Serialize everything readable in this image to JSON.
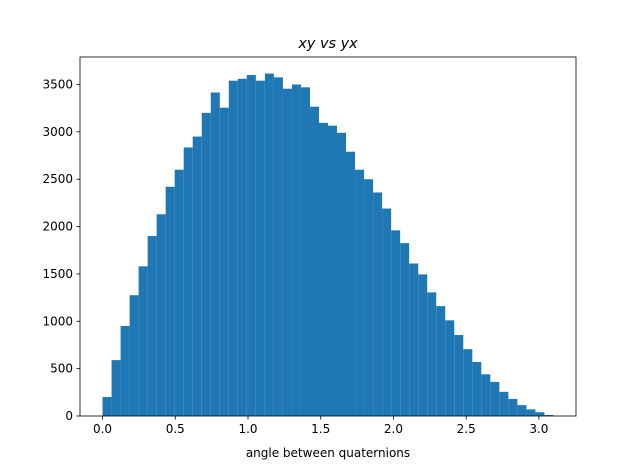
{
  "chart_data": {
    "type": "histogram",
    "title": "xy vs yx",
    "x_label": "angle between quaternions",
    "bins": [
      0,
      0.062,
      0.124,
      0.186,
      0.248,
      0.31,
      0.372,
      0.434,
      0.496,
      0.558,
      0.62,
      0.682,
      0.744,
      0.806,
      0.868,
      0.93,
      0.992,
      1.054,
      1.116,
      1.178,
      1.24,
      1.302,
      1.364,
      1.426,
      1.488,
      1.55,
      1.612,
      1.674,
      1.736,
      1.798,
      1.86,
      1.922,
      1.984,
      2.046,
      2.108,
      2.17,
      2.232,
      2.294,
      2.356,
      2.418,
      2.48,
      2.542,
      2.604,
      2.666,
      2.728,
      2.79,
      2.852,
      2.914,
      2.976,
      3.038,
      3.1
    ],
    "values": [
      200,
      590,
      950,
      1275,
      1580,
      1900,
      2130,
      2420,
      2600,
      2835,
      2950,
      3200,
      3415,
      3255,
      3540,
      3560,
      3600,
      3540,
      3615,
      3575,
      3455,
      3500,
      3470,
      3265,
      3095,
      3065,
      2990,
      2790,
      2600,
      2500,
      2360,
      2190,
      1960,
      1825,
      1610,
      1495,
      1305,
      1160,
      1010,
      855,
      705,
      570,
      440,
      360,
      255,
      180,
      115,
      70,
      40,
      10
    ],
    "color": "#1f77b4",
    "xlim": [
      -0.155,
      3.255
    ],
    "xticks": [
      {
        "value": 0,
        "label": "0.0"
      },
      {
        "value": 0.5,
        "label": "0.5"
      },
      {
        "value": 1,
        "label": "1.0"
      },
      {
        "value": 1.5,
        "label": "1.5"
      },
      {
        "value": 2,
        "label": "2.0"
      },
      {
        "value": 2.5,
        "label": "2.5"
      },
      {
        "value": 3,
        "label": "3.0"
      }
    ],
    "ylim": [
      0,
      3790
    ],
    "yticks": [
      0,
      500,
      1000,
      1500,
      2000,
      2500,
      3000,
      3500
    ]
  }
}
